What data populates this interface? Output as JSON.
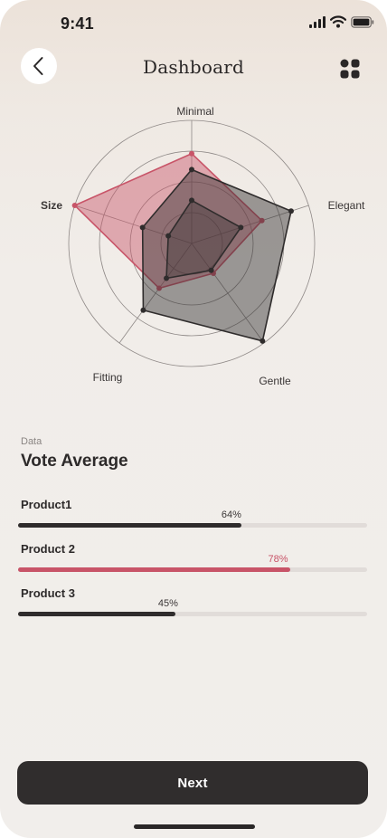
{
  "status_bar": {
    "time": "9:41"
  },
  "header": {
    "title": "Dashboard",
    "back_icon": "chevron-left-icon",
    "menu_icon": "grid-icon"
  },
  "chart_data": {
    "type": "radar",
    "axes": [
      "Minimal",
      "Elegant",
      "Gentle",
      "Fitting",
      "Size"
    ],
    "emphasized_axis": "Size",
    "scale_rings": 4,
    "series": [
      {
        "values": [
          0.73,
          0.6,
          0.3,
          0.45,
          1.0
        ],
        "color": "#c85468",
        "fill_opacity": 0.45
      },
      {
        "values": [
          0.6,
          0.85,
          0.98,
          0.67,
          0.42
        ],
        "color": "#2f2c2c",
        "fill_opacity": 0.45
      },
      {
        "values": [
          0.35,
          0.42,
          0.27,
          0.35,
          0.2
        ],
        "color": "#2f2c2c",
        "fill_opacity": 0.35
      }
    ]
  },
  "data_section": {
    "eyebrow": "Data",
    "title": "Vote Average",
    "bars": [
      {
        "name": "Product1",
        "value": 0.64,
        "label": "64%",
        "accent": false
      },
      {
        "name": "Product 2",
        "value": 0.78,
        "label": "78%",
        "accent": true
      },
      {
        "name": "Product 3",
        "value": 0.45,
        "label": "45%",
        "accent": false
      }
    ]
  },
  "colors": {
    "accent": "#c85468",
    "dark": "#302d2d",
    "track": "#e1dcd9"
  },
  "next_button": {
    "label": "Next"
  }
}
